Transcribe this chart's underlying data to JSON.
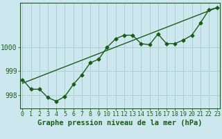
{
  "title": "Graphe pression niveau de la mer (hPa)",
  "background_color": "#cce8ee",
  "grid_color": "#aacccc",
  "line_color": "#1a5c1a",
  "hours": [
    0,
    1,
    2,
    3,
    4,
    5,
    6,
    7,
    8,
    9,
    10,
    11,
    12,
    13,
    14,
    15,
    16,
    17,
    18,
    19,
    20,
    21,
    22,
    23
  ],
  "pressure": [
    998.65,
    998.25,
    998.25,
    997.9,
    997.75,
    997.95,
    998.45,
    998.85,
    999.35,
    999.5,
    1000.0,
    1000.35,
    1000.5,
    1000.5,
    1000.15,
    1000.1,
    1000.55,
    1000.15,
    1000.15,
    1000.3,
    1000.5,
    1001.0,
    1001.55,
    1001.65
  ],
  "trend_x": [
    0,
    23
  ],
  "trend_y": [
    998.5,
    1001.65
  ],
  "ylim_min": 997.45,
  "ylim_max": 1001.85,
  "yticks": [
    998,
    999,
    1000
  ],
  "xlim_min": -0.3,
  "xlim_max": 23.3,
  "title_fontsize": 7.5,
  "tick_fontsize": 6.0,
  "marker_size": 2.5
}
